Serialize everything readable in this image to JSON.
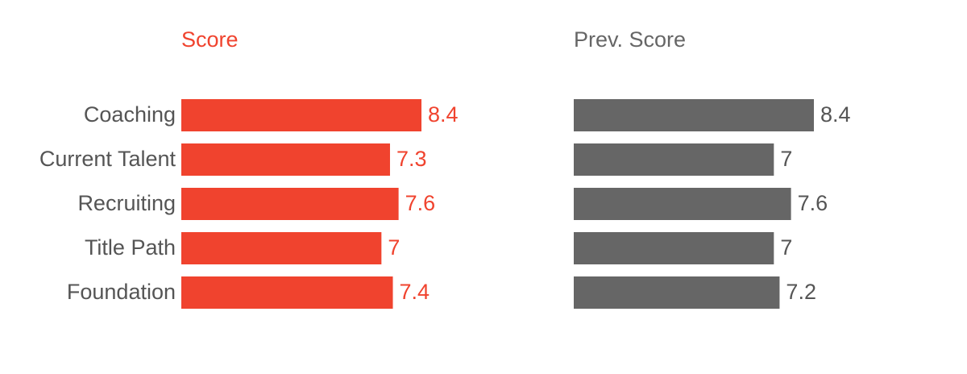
{
  "chart_data": [
    {
      "type": "bar",
      "orientation": "horizontal",
      "title": "Score",
      "categories": [
        "Coaching",
        "Current Talent",
        "Recruiting",
        "Title Path",
        "Foundation"
      ],
      "values": [
        8.4,
        7.3,
        7.6,
        7,
        7.4
      ],
      "color": "#f0432e",
      "xlim": [
        0,
        8.4
      ]
    },
    {
      "type": "bar",
      "orientation": "horizontal",
      "title": "Prev. Score",
      "values": [
        8.4,
        7,
        7.6,
        7,
        7.2
      ],
      "color": "#666666",
      "xlim": [
        0,
        8.4
      ]
    }
  ]
}
